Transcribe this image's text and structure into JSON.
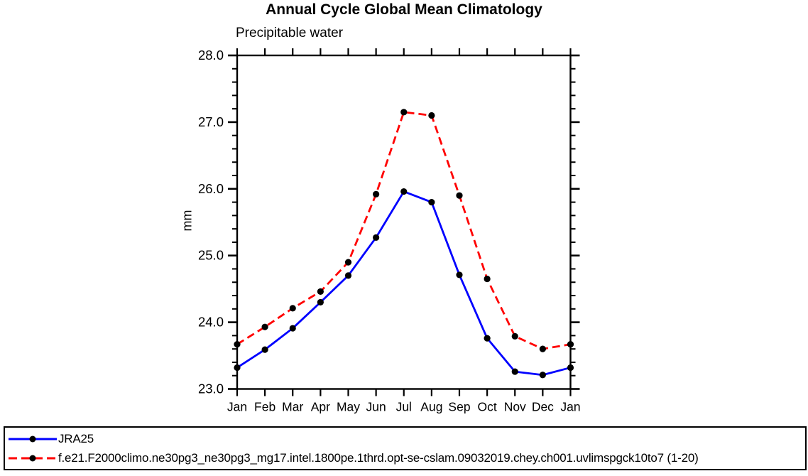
{
  "chart_data": {
    "type": "line",
    "title": "Annual Cycle Global Mean Climatology",
    "subtitle": "Precipitable water",
    "ylabel": "mm",
    "xlabel": "",
    "x_categories": [
      "Jan",
      "Feb",
      "Mar",
      "Apr",
      "May",
      "Jun",
      "Jul",
      "Aug",
      "Sep",
      "Oct",
      "Nov",
      "Dec",
      "Jan"
    ],
    "ylim": [
      23.0,
      28.0
    ],
    "ytick_labels": [
      "23.0",
      "24.0",
      "25.0",
      "26.0",
      "27.0",
      "28.0"
    ],
    "ytick_major_step": 1.0,
    "ytick_minor_step": 0.2,
    "grid": false,
    "legend_position": "bottom-box-full-width",
    "frame_color": "#000000",
    "marker_color": "#000000",
    "series": [
      {
        "name": "JRA25",
        "color": "#0000ff",
        "style": "solid",
        "marker": "filled-circle",
        "values": [
          23.32,
          23.59,
          23.91,
          24.3,
          24.7,
          25.27,
          25.96,
          25.8,
          24.71,
          23.76,
          23.26,
          23.21,
          23.32
        ]
      },
      {
        "name": "f.e21.F2000climo.ne30pg3_ne30pg3_mg17.intel.1800pe.1thrd.opt-se-cslam.09032019.chey.ch001.uvlimspgck10to7 (1-20)",
        "color": "#ff0000",
        "style": "dashed",
        "marker": "filled-circle",
        "values": [
          23.67,
          23.93,
          24.21,
          24.46,
          24.9,
          25.92,
          27.15,
          27.1,
          25.9,
          24.65,
          23.79,
          23.6,
          23.67
        ]
      }
    ]
  }
}
